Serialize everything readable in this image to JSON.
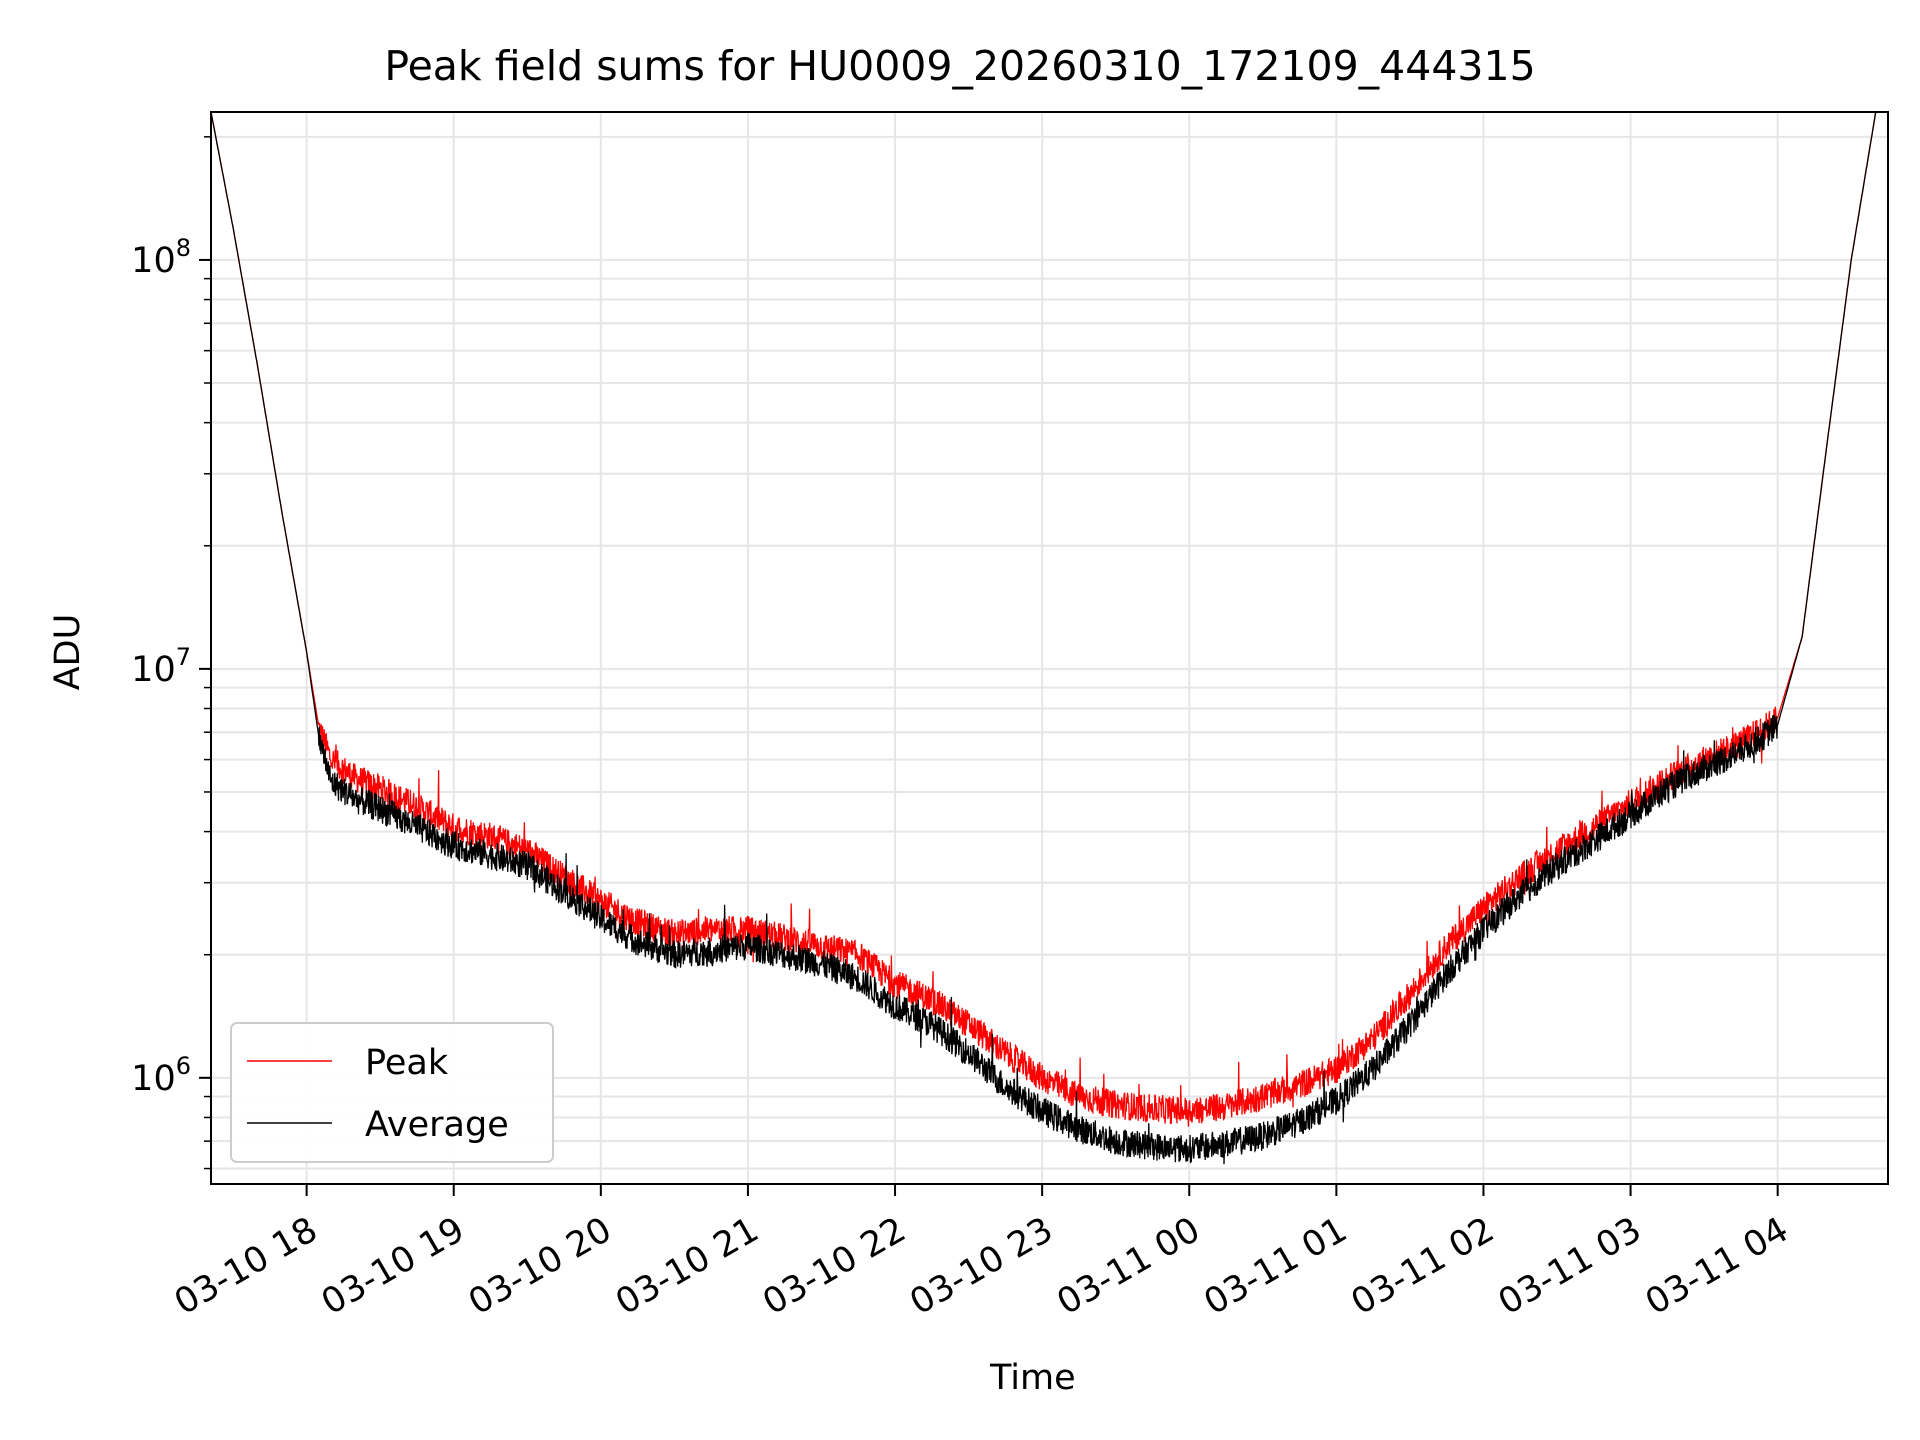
{
  "chart_data": {
    "type": "line",
    "title": "Peak field sums for HU0009_20260310_172109_444315",
    "xlabel": "Time",
    "ylabel": "ADU",
    "yscale": "log",
    "ylim": [
      550000,
      230000000
    ],
    "xlim": [
      "2026-03-10 17:21",
      "2026-03-11 04:45"
    ],
    "grid": true,
    "legend_position": "lower-left",
    "x_ticks": [
      {
        "value": "2026-03-10 18:00",
        "label": "03-10 18"
      },
      {
        "value": "2026-03-10 19:00",
        "label": "03-10 19"
      },
      {
        "value": "2026-03-10 20:00",
        "label": "03-10 20"
      },
      {
        "value": "2026-03-10 21:00",
        "label": "03-10 21"
      },
      {
        "value": "2026-03-10 22:00",
        "label": "03-10 22"
      },
      {
        "value": "2026-03-10 23:00",
        "label": "03-10 23"
      },
      {
        "value": "2026-03-11 00:00",
        "label": "03-11 00"
      },
      {
        "value": "2026-03-11 01:00",
        "label": "03-11 01"
      },
      {
        "value": "2026-03-11 02:00",
        "label": "03-11 02"
      },
      {
        "value": "2026-03-11 03:00",
        "label": "03-11 03"
      },
      {
        "value": "2026-03-11 04:00",
        "label": "03-11 04"
      }
    ],
    "y_ticks": [
      {
        "value": 1000000,
        "base": "10",
        "exp": "6"
      },
      {
        "value": 10000000,
        "base": "10",
        "exp": "7"
      },
      {
        "value": 100000000,
        "base": "10",
        "exp": "8"
      }
    ],
    "x": [
      "2026-03-10 17:21",
      "2026-03-10 17:30",
      "2026-03-10 17:40",
      "2026-03-10 17:50",
      "2026-03-10 18:00",
      "2026-03-10 18:05",
      "2026-03-10 18:10",
      "2026-03-10 18:20",
      "2026-03-10 18:30",
      "2026-03-10 18:45",
      "2026-03-10 19:00",
      "2026-03-10 19:15",
      "2026-03-10 19:30",
      "2026-03-10 19:45",
      "2026-03-10 20:00",
      "2026-03-10 20:15",
      "2026-03-10 20:30",
      "2026-03-10 20:45",
      "2026-03-10 21:00",
      "2026-03-10 21:15",
      "2026-03-10 21:30",
      "2026-03-10 21:45",
      "2026-03-10 22:00",
      "2026-03-10 22:15",
      "2026-03-10 22:30",
      "2026-03-10 22:45",
      "2026-03-10 23:00",
      "2026-03-10 23:15",
      "2026-03-10 23:30",
      "2026-03-10 23:45",
      "2026-03-11 00:00",
      "2026-03-11 00:15",
      "2026-03-11 00:30",
      "2026-03-11 00:45",
      "2026-03-11 01:00",
      "2026-03-11 01:15",
      "2026-03-11 01:30",
      "2026-03-11 01:45",
      "2026-03-11 02:00",
      "2026-03-11 02:15",
      "2026-03-11 02:30",
      "2026-03-11 02:45",
      "2026-03-11 03:00",
      "2026-03-11 03:15",
      "2026-03-11 03:30",
      "2026-03-11 03:45",
      "2026-03-11 03:55",
      "2026-03-11 04:00",
      "2026-03-11 04:10",
      "2026-03-11 04:20",
      "2026-03-11 04:30",
      "2026-03-11 04:40"
    ],
    "series": [
      {
        "name": "Peak",
        "color": "#ff0000",
        "values": [
          230000000,
          120000000,
          55000000,
          24000000,
          11000000,
          7200000,
          6000000,
          5400000,
          5100000,
          4600000,
          4100000,
          3900000,
          3600000,
          3100000,
          2700000,
          2400000,
          2250000,
          2300000,
          2300000,
          2200000,
          2100000,
          2000000,
          1700000,
          1550000,
          1350000,
          1150000,
          1000000,
          900000,
          860000,
          840000,
          830000,
          850000,
          900000,
          960000,
          1050000,
          1250000,
          1600000,
          2100000,
          2600000,
          3100000,
          3600000,
          4100000,
          4700000,
          5400000,
          6000000,
          6600000,
          7200000,
          7600000,
          12000000,
          35000000,
          100000000,
          230000000
        ]
      },
      {
        "name": "Average",
        "color": "#000000",
        "values": [
          230000000,
          120000000,
          55000000,
          24000000,
          11000000,
          6800000,
          5300000,
          4800000,
          4550000,
          4100000,
          3700000,
          3500000,
          3300000,
          2850000,
          2450000,
          2150000,
          2000000,
          2050000,
          2100000,
          2000000,
          1900000,
          1750000,
          1500000,
          1350000,
          1150000,
          950000,
          830000,
          750000,
          700000,
          680000,
          670000,
          690000,
          720000,
          780000,
          880000,
          1050000,
          1350000,
          1800000,
          2300000,
          2800000,
          3300000,
          3800000,
          4400000,
          5100000,
          5700000,
          6300000,
          6900000,
          7300000,
          12000000,
          35000000,
          100000000,
          230000000
        ]
      }
    ]
  }
}
